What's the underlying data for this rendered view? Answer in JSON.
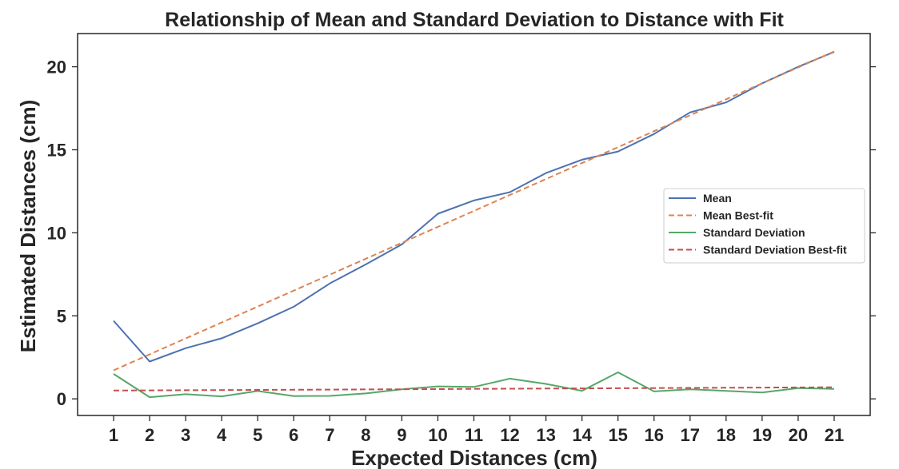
{
  "chart_data": {
    "type": "line",
    "title": "Relationship of Mean and Standard Deviation to Distance with Fit",
    "xlabel": "Expected Distances (cm)",
    "ylabel": "Estimated Distances (cm)",
    "x": [
      1,
      2,
      3,
      4,
      5,
      6,
      7,
      8,
      9,
      10,
      11,
      12,
      13,
      14,
      15,
      16,
      17,
      18,
      19,
      20,
      21
    ],
    "xlim": [
      0,
      22
    ],
    "ylim": [
      -1,
      22
    ],
    "yticks": [
      0,
      5,
      10,
      15,
      20
    ],
    "grid": false,
    "legend_position": "center-right",
    "series": [
      {
        "name": "Mean",
        "style": "solid",
        "color": "#4c72b0",
        "values": [
          4.7,
          2.25,
          3.05,
          3.65,
          4.55,
          5.55,
          6.95,
          8.1,
          9.3,
          11.15,
          11.95,
          12.45,
          13.6,
          14.4,
          14.9,
          15.95,
          17.25,
          17.85,
          19.0,
          20.0,
          20.9
        ]
      },
      {
        "name": "Mean Best-fit",
        "style": "dashed",
        "color": "#dd8452",
        "values": [
          1.72,
          2.68,
          3.64,
          4.6,
          5.56,
          6.52,
          7.48,
          8.44,
          9.4,
          10.36,
          11.32,
          12.28,
          13.24,
          14.2,
          15.16,
          16.12,
          17.08,
          18.04,
          19.0,
          19.96,
          20.92
        ]
      },
      {
        "name": "Standard Deviation",
        "style": "solid",
        "color": "#55a868",
        "values": [
          1.5,
          0.1,
          0.28,
          0.15,
          0.47,
          0.17,
          0.18,
          0.33,
          0.58,
          0.75,
          0.72,
          1.22,
          0.9,
          0.48,
          1.6,
          0.45,
          0.58,
          0.48,
          0.38,
          0.65,
          0.6
        ]
      },
      {
        "name": "Standard Deviation Best-fit",
        "style": "dashed",
        "color": "#c44e52",
        "values": [
          0.5,
          0.51,
          0.52,
          0.53,
          0.54,
          0.55,
          0.56,
          0.57,
          0.58,
          0.59,
          0.6,
          0.61,
          0.62,
          0.63,
          0.64,
          0.65,
          0.66,
          0.67,
          0.68,
          0.69,
          0.7
        ]
      }
    ]
  }
}
